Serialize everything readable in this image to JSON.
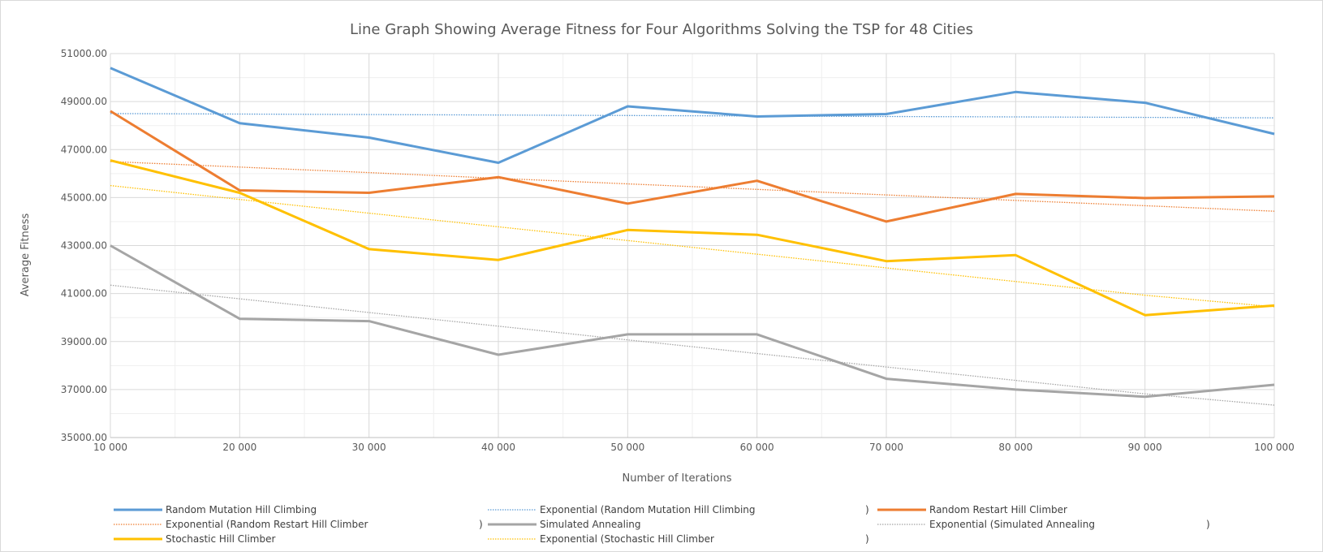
{
  "chart_data": {
    "type": "line",
    "title": "Line Graph Showing Average Fitness for Four Algorithms Solving the TSP for 48 Cities",
    "xlabel": "Number of Iterations",
    "ylabel": "Average Fitness",
    "x": [
      10000,
      20000,
      30000,
      40000,
      50000,
      60000,
      70000,
      80000,
      90000,
      100000
    ],
    "x_tick_labels": [
      "10 000",
      "20 000",
      "30 000",
      "40 000",
      "50 000",
      "60 000",
      "70 000",
      "80 000",
      "90 000",
      "100 000"
    ],
    "ylim": [
      35000,
      51000
    ],
    "y_tick_labels": [
      "35000.00",
      "37000.00",
      "39000.00",
      "41000.00",
      "43000.00",
      "45000.00",
      "47000.00",
      "49000.00",
      "51000.00"
    ],
    "y_ticks": [
      35000,
      37000,
      39000,
      41000,
      43000,
      45000,
      47000,
      49000,
      51000
    ],
    "grid": true,
    "legend_position": "bottom",
    "series": [
      {
        "name": "Random Mutation Hill Climbing",
        "color": "#5b9bd5",
        "style": "solid",
        "values": [
          50400,
          48100,
          47500,
          46450,
          48800,
          48380,
          48480,
          49400,
          48950,
          47650
        ]
      },
      {
        "name": "Exponential (Random Mutation Hill Climbing",
        "name_suffix": ")",
        "color": "#5b9bd5",
        "style": "dotted",
        "trendline": true,
        "values": [
          48500,
          48480,
          48460,
          48440,
          48420,
          48400,
          48380,
          48360,
          48340,
          48320
        ]
      },
      {
        "name": "Random Restart Hill Climber",
        "color": "#ed7d31",
        "style": "solid",
        "values": [
          48600,
          45300,
          45200,
          45850,
          44750,
          45700,
          44000,
          45150,
          44980,
          45050
        ]
      },
      {
        "name": "Exponential (Random Restart Hill Climber",
        "name_suffix": ")",
        "color": "#ed7d31",
        "style": "dotted",
        "trendline": true,
        "values": [
          46500,
          46270,
          46040,
          45800,
          45570,
          45340,
          45110,
          44880,
          44660,
          44430
        ]
      },
      {
        "name": "Simulated Annealing",
        "color": "#a5a5a5",
        "style": "solid",
        "values": [
          43000,
          39950,
          39850,
          38450,
          39300,
          39300,
          37450,
          37000,
          36700,
          37200
        ]
      },
      {
        "name": "Exponential (Simulated Annealing",
        "name_suffix": ")",
        "color": "#a5a5a5",
        "style": "dotted",
        "trendline": true,
        "values": [
          41350,
          40780,
          40210,
          39640,
          39070,
          38500,
          37940,
          37380,
          36820,
          36350
        ]
      },
      {
        "name": "Stochastic Hill Climber",
        "color": "#ffc000",
        "style": "solid",
        "values": [
          46550,
          45200,
          42850,
          42400,
          43650,
          43450,
          42350,
          42600,
          40100,
          40500
        ]
      },
      {
        "name": "Exponential (Stochastic Hill Climber",
        "name_suffix": ")",
        "color": "#ffc000",
        "style": "dotted",
        "trendline": true,
        "values": [
          45500,
          44920,
          44350,
          43780,
          43210,
          42640,
          42070,
          41500,
          40930,
          40450
        ]
      }
    ]
  }
}
